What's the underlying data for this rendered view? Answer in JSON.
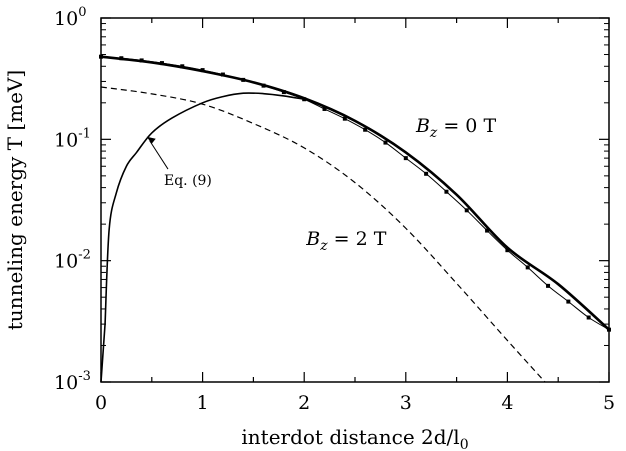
{
  "chart_data": {
    "type": "line",
    "title": "",
    "xlabel": "interdot distance 2d/l",
    "xlabel_sub": "0",
    "ylabel": "tunneling energy T [meV]",
    "xlim": [
      0,
      5
    ],
    "ylim": [
      0.001,
      1
    ],
    "y_scale": "log",
    "grid": false,
    "x_ticks": [
      "0",
      "1",
      "2",
      "3",
      "4",
      "5"
    ],
    "y_ticks": [
      {
        "value": 1,
        "base": "10",
        "exp": "0"
      },
      {
        "value": 0.1,
        "base": "10",
        "exp": "-1"
      },
      {
        "value": 0.01,
        "base": "10",
        "exp": "-2"
      },
      {
        "value": 0.001,
        "base": "10",
        "exp": "-3"
      }
    ],
    "series": [
      {
        "style": "solid-thick",
        "x": [
          0,
          0.5,
          1,
          1.5,
          2,
          2.5,
          3,
          3.5,
          4,
          4.5,
          5
        ],
        "y": [
          0.48,
          0.43,
          0.365,
          0.295,
          0.218,
          0.142,
          0.078,
          0.035,
          0.0128,
          0.0064,
          0.0027
        ]
      },
      {
        "style": "dotted-markers",
        "x": [
          0,
          0.2,
          0.4,
          0.6,
          0.8,
          1,
          1.2,
          1.4,
          1.6,
          1.8,
          2,
          2.2,
          2.4,
          2.6,
          2.8,
          3,
          3.2,
          3.4,
          3.6,
          3.8,
          4,
          4.2,
          4.4,
          4.6,
          4.8,
          5
        ],
        "y": [
          0.48,
          0.466,
          0.447,
          0.425,
          0.4,
          0.372,
          0.342,
          0.309,
          0.277,
          0.245,
          0.214,
          0.178,
          0.148,
          0.12,
          0.094,
          0.07,
          0.052,
          0.037,
          0.026,
          0.0177,
          0.0122,
          0.0088,
          0.0062,
          0.0046,
          0.0034,
          0.0027
        ]
      },
      {
        "style": "solid-thin",
        "x": [
          0,
          0.04,
          0.08,
          0.15,
          0.25,
          0.35,
          0.5,
          0.7,
          1,
          1.2,
          1.4,
          1.6,
          1.8,
          2
        ],
        "y": [
          0.0008,
          0.003,
          0.018,
          0.036,
          0.06,
          0.078,
          0.113,
          0.15,
          0.2,
          0.225,
          0.24,
          0.238,
          0.228,
          0.214
        ]
      },
      {
        "style": "dashed",
        "x": [
          0,
          0.5,
          1,
          1.5,
          2,
          2.5,
          3,
          3.5,
          4,
          4.37
        ],
        "y": [
          0.27,
          0.237,
          0.195,
          0.135,
          0.085,
          0.044,
          0.0185,
          0.0065,
          0.0022,
          0.001
        ]
      }
    ],
    "annotations": [
      {
        "base": "B",
        "sub": "z",
        "rest": " = 0 T",
        "x": 3.1,
        "y": 0.115
      },
      {
        "base": "B",
        "sub": "z",
        "rest": " = 2 T",
        "x": 2.02,
        "y": 0.0135
      },
      {
        "text": "Eq. (9)",
        "x": 0.62,
        "y": 0.042
      }
    ]
  }
}
